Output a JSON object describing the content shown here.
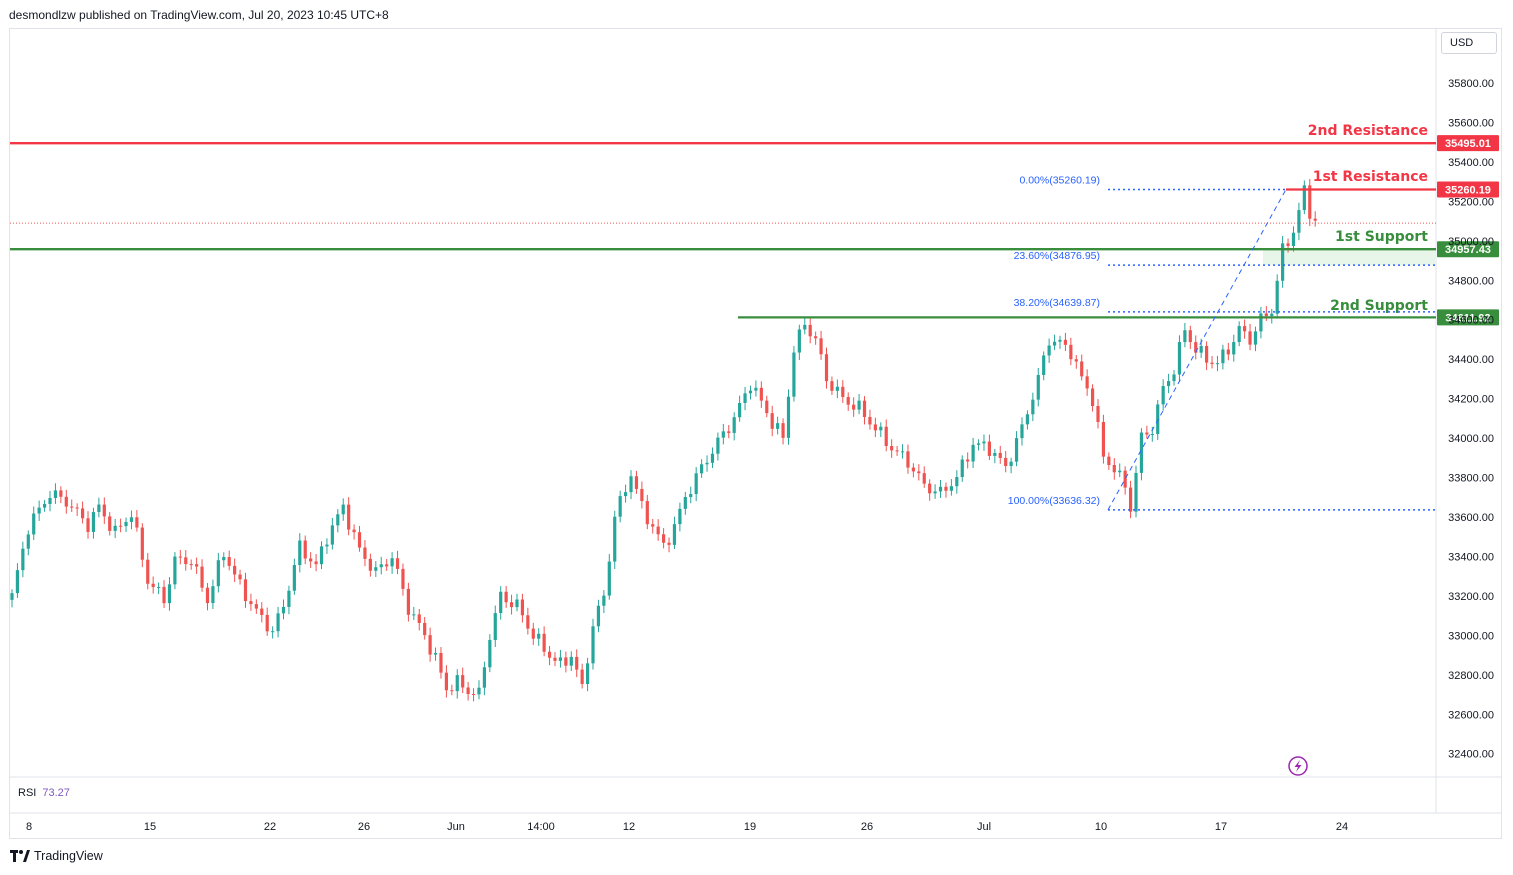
{
  "header": {
    "text": "desmondlzw published on TradingView.com, Jul 20, 2023 10:45 UTC+8"
  },
  "currency": "USD",
  "rsi": {
    "label": "RSI",
    "value": "73.27"
  },
  "footer": {
    "brand": "TradingView"
  },
  "colors": {
    "up": "#26a69a",
    "down": "#ef5350",
    "resistance": "#f23645",
    "support": "#388e3c",
    "fib": "#2962ff",
    "rsi": "#7e57c2",
    "support_zone": "#e8f5e9"
  },
  "chart_data": {
    "type": "candlestick",
    "y_ticks": [
      "35800.00",
      "35600.00",
      "35400.00",
      "35200.00",
      "35000.00",
      "34800.00",
      "34600.00",
      "34400.00",
      "34200.00",
      "34000.00",
      "33800.00",
      "33600.00",
      "33400.00",
      "33200.00",
      "33000.00",
      "32800.00",
      "32600.00",
      "32400.00"
    ],
    "x_ticks": [
      "8",
      "15",
      "22",
      "26",
      "Jun",
      "14:00",
      "12",
      "19",
      "26",
      "Jul",
      "10",
      "17",
      "24"
    ],
    "ylim": [
      32300,
      35950
    ],
    "levels": [
      {
        "name": "2nd Resistance",
        "value": "35495.01",
        "kind": "resistance"
      },
      {
        "name": "1st Resistance",
        "value": "35260.19",
        "kind": "resistance"
      },
      {
        "name": "1st Support",
        "value": "34957.43",
        "kind": "support"
      },
      {
        "name": "2nd Support",
        "value": "34611.92",
        "kind": "support"
      }
    ],
    "fibonacci": [
      {
        "label": "0.00%(35260.19)",
        "value": 35260.19
      },
      {
        "label": "23.60%(34876.95)",
        "value": 34876.95
      },
      {
        "label": "38.20%(34639.87)",
        "value": 34639.87
      },
      {
        "label": "100.00%(33636.32)",
        "value": 33636.32
      }
    ],
    "close_path": [
      [
        0,
        33200
      ],
      [
        3,
        33550
      ],
      [
        7,
        33720
      ],
      [
        10,
        33680
      ],
      [
        14,
        33560
      ],
      [
        16,
        33650
      ],
      [
        19,
        33520
      ],
      [
        22,
        33620
      ],
      [
        25,
        33280
      ],
      [
        28,
        33180
      ],
      [
        30,
        33380
      ],
      [
        33,
        33380
      ],
      [
        36,
        33180
      ],
      [
        39,
        33420
      ],
      [
        42,
        33250
      ],
      [
        45,
        33120
      ],
      [
        48,
        33020
      ],
      [
        50,
        33150
      ],
      [
        53,
        33450
      ],
      [
        56,
        33350
      ],
      [
        58,
        33500
      ],
      [
        61,
        33650
      ],
      [
        64,
        33430
      ],
      [
        67,
        33320
      ],
      [
        70,
        33400
      ],
      [
        73,
        33140
      ],
      [
        76,
        33000
      ],
      [
        78,
        32880
      ],
      [
        80,
        32730
      ],
      [
        82,
        32760
      ],
      [
        84,
        32720
      ],
      [
        86,
        32700
      ],
      [
        88,
        33000
      ],
      [
        90,
        33200
      ],
      [
        93,
        33150
      ],
      [
        96,
        33000
      ],
      [
        99,
        32900
      ],
      [
        101,
        32850
      ],
      [
        103,
        32900
      ],
      [
        105,
        32730
      ],
      [
        107,
        33050
      ],
      [
        109,
        33200
      ],
      [
        111,
        33600
      ],
      [
        114,
        33820
      ],
      [
        116,
        33650
      ],
      [
        118,
        33550
      ],
      [
        120,
        33450
      ],
      [
        122,
        33550
      ],
      [
        124,
        33700
      ],
      [
        127,
        33850
      ],
      [
        130,
        33980
      ],
      [
        133,
        34100
      ],
      [
        136,
        34280
      ],
      [
        138,
        34180
      ],
      [
        140,
        34080
      ],
      [
        142,
        34000
      ],
      [
        144,
        34450
      ],
      [
        146,
        34580
      ],
      [
        148,
        34500
      ],
      [
        150,
        34300
      ],
      [
        153,
        34200
      ],
      [
        156,
        34150
      ],
      [
        159,
        34050
      ],
      [
        162,
        33950
      ],
      [
        165,
        33880
      ],
      [
        168,
        33760
      ],
      [
        171,
        33720
      ],
      [
        174,
        33800
      ],
      [
        177,
        33970
      ],
      [
        180,
        33950
      ],
      [
        183,
        33850
      ],
      [
        186,
        34050
      ],
      [
        189,
        34300
      ],
      [
        191,
        34500
      ],
      [
        193,
        34480
      ],
      [
        195,
        34440
      ],
      [
        197,
        34300
      ],
      [
        199,
        34200
      ],
      [
        201,
        33900
      ],
      [
        203,
        33850
      ],
      [
        205,
        33750
      ],
      [
        206,
        33650
      ],
      [
        208,
        34000
      ],
      [
        210,
        34050
      ],
      [
        212,
        34250
      ],
      [
        214,
        34350
      ],
      [
        216,
        34550
      ],
      [
        218,
        34450
      ],
      [
        220,
        34400
      ],
      [
        222,
        34380
      ],
      [
        224,
        34450
      ],
      [
        226,
        34550
      ],
      [
        228,
        34500
      ],
      [
        230,
        34600
      ],
      [
        232,
        34650
      ],
      [
        234,
        34950
      ],
      [
        236,
        35050
      ],
      [
        238,
        35250
      ],
      [
        239,
        35150
      ],
      [
        240,
        35100
      ]
    ]
  }
}
